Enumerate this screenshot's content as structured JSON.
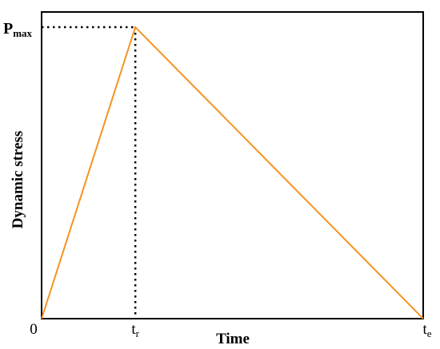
{
  "chart_data": {
    "type": "line",
    "xlabel": "Time",
    "ylabel": "Dynamic stress",
    "ylim": [
      0,
      1
    ],
    "xlim": [
      0,
      1
    ],
    "grid": false,
    "x_ticks": [
      {
        "value": 0,
        "label": "0",
        "sub": ""
      },
      {
        "value": 0.2456,
        "label": "t",
        "sub": "r"
      },
      {
        "value": 1,
        "label": "t",
        "sub": "e"
      }
    ],
    "y_marker": {
      "value": 1,
      "label": "P",
      "sub": "max"
    },
    "series": [
      {
        "x": [
          0,
          0.2456,
          1
        ],
        "y": [
          0,
          1,
          0
        ],
        "color": "#f59323"
      }
    ],
    "guide_color": "#000000"
  }
}
